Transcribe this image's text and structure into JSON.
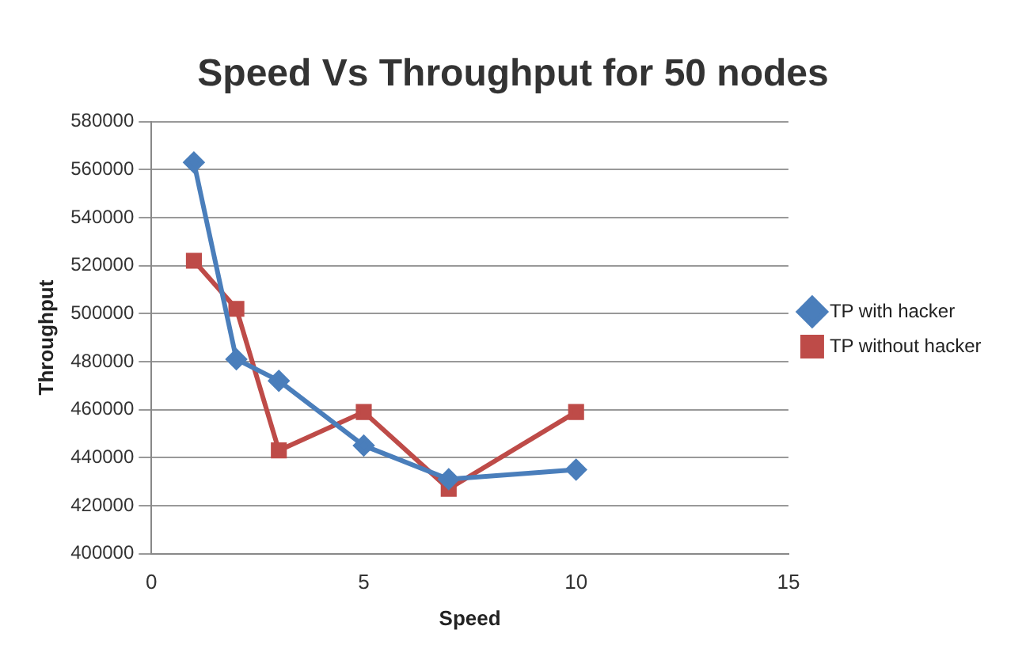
{
  "chart_data": {
    "type": "line",
    "title": "Speed Vs Throughput for 50 nodes",
    "xlabel": "Speed",
    "ylabel": "Throughput",
    "x": [
      1,
      2,
      3,
      5,
      7,
      10
    ],
    "series": [
      {
        "name": "TP with hacker",
        "color": "#4a7ebb",
        "marker": "diamond",
        "values": [
          563000,
          481000,
          472000,
          445000,
          431000,
          435000
        ]
      },
      {
        "name": "TP without hacker",
        "color": "#be4b48",
        "marker": "square",
        "values": [
          522000,
          502000,
          443000,
          459000,
          427000,
          459000
        ]
      }
    ],
    "xlim": [
      0,
      15
    ],
    "xticks": [
      0,
      5,
      10,
      15
    ],
    "ylim": [
      400000,
      580000
    ],
    "yticks": [
      400000,
      420000,
      440000,
      460000,
      480000,
      500000,
      520000,
      540000,
      560000,
      580000
    ],
    "grid": "y",
    "legend": "right",
    "line_style": "solid"
  }
}
